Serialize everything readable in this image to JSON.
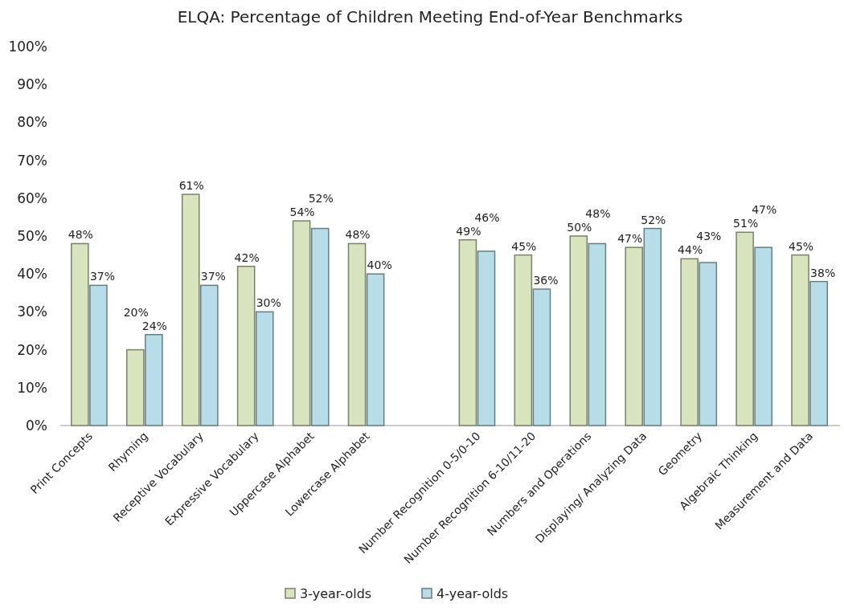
{
  "chart_data": {
    "type": "bar",
    "title": "ELQA: Percentage of Children Meeting End-of-Year Benchmarks",
    "categories": [
      "Print Concepts",
      "Rhyming",
      "Receptive Vocabulary",
      "Expressive Vocabulary",
      "Uppercase Alphabet",
      "Lowercase Alphabet",
      null,
      "Number Recognition 0-5/0-10",
      "Number Recognition 6-10/11-20",
      "Numbers and Operations",
      "Displaying/ Analyzing Data",
      "Geometry",
      "Algebraic Thinking",
      "Measurement and Data"
    ],
    "series": [
      {
        "name": "3-year-olds",
        "color": "#d7e4bd",
        "values": [
          48,
          20,
          61,
          42,
          54,
          48,
          null,
          49,
          45,
          50,
          47,
          44,
          51,
          45
        ],
        "value_labels": [
          "48%",
          "20%",
          "61%",
          "42%",
          "54%",
          "48%",
          null,
          "49%",
          "45%",
          "50%",
          "47%",
          "44%",
          "51%",
          "45%"
        ]
      },
      {
        "name": "4-year-olds",
        "color": "#b7dee8",
        "values": [
          37,
          24,
          37,
          30,
          52,
          40,
          null,
          46,
          36,
          48,
          52,
          43,
          47,
          38
        ],
        "value_labels": [
          "37%",
          "24%",
          "37%",
          "30%",
          "52%",
          "40%",
          null,
          "46%",
          "36%",
          "48%",
          "52%",
          "43%",
          "47%",
          "38%"
        ]
      }
    ],
    "ylim": [
      0,
      100
    ],
    "yticks": [
      {
        "value": 0,
        "label": "0%"
      },
      {
        "value": 10,
        "label": "10%"
      },
      {
        "value": 20,
        "label": "20%"
      },
      {
        "value": 30,
        "label": "30%"
      },
      {
        "value": 40,
        "label": "40%"
      },
      {
        "value": 50,
        "label": "50%"
      },
      {
        "value": 60,
        "label": "60%"
      },
      {
        "value": 70,
        "label": "70%"
      },
      {
        "value": 80,
        "label": "80%"
      },
      {
        "value": 90,
        "label": "90%"
      },
      {
        "value": 100,
        "label": "100%"
      }
    ],
    "legend": "bottom"
  }
}
